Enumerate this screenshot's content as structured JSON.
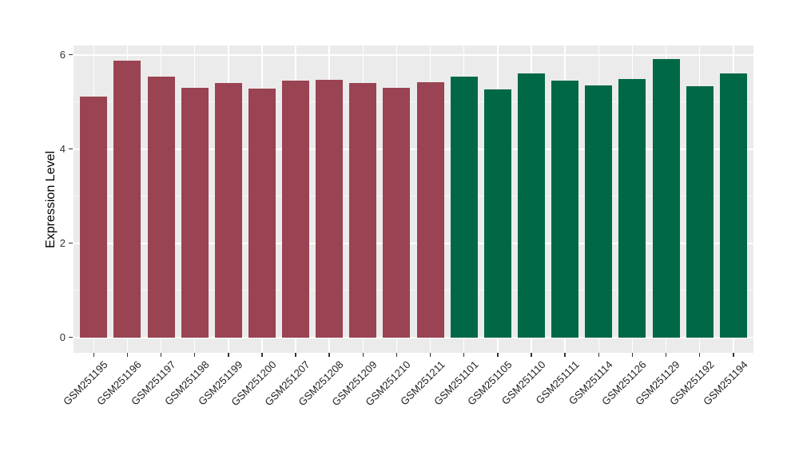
{
  "chart_data": {
    "type": "bar",
    "title": "",
    "xlabel": "",
    "ylabel": "Expression Level",
    "yticks": [
      0,
      2,
      4,
      6
    ],
    "yticks_minor": [
      1,
      3,
      5
    ],
    "ylim": [
      0,
      6.2
    ],
    "grid": true,
    "legend": false,
    "panel_background": "#EBEBEB",
    "gridline_color": "#FFFFFF",
    "group_colors": {
      "left_group": "#9A4352",
      "right_group": "#006846"
    },
    "categories": [
      "GSM251195",
      "GSM251196",
      "GSM251197",
      "GSM251198",
      "GSM251199",
      "GSM251200",
      "GSM251207",
      "GSM251208",
      "GSM251209",
      "GSM251210",
      "GSM251211",
      "GSM251101",
      "GSM251105",
      "GSM251110",
      "GSM251111",
      "GSM251114",
      "GSM251126",
      "GSM251129",
      "GSM251192",
      "GSM251194"
    ],
    "values": [
      5.12,
      5.88,
      5.53,
      5.3,
      5.41,
      5.29,
      5.45,
      5.47,
      5.41,
      5.3,
      5.42,
      5.53,
      5.26,
      5.61,
      5.45,
      5.35,
      5.48,
      5.91,
      5.33,
      5.61
    ],
    "colors": [
      "#9A4352",
      "#9A4352",
      "#9A4352",
      "#9A4352",
      "#9A4352",
      "#9A4352",
      "#9A4352",
      "#9A4352",
      "#9A4352",
      "#9A4352",
      "#9A4352",
      "#006846",
      "#006846",
      "#006846",
      "#006846",
      "#006846",
      "#006846",
      "#006846",
      "#006846",
      "#006846"
    ]
  }
}
